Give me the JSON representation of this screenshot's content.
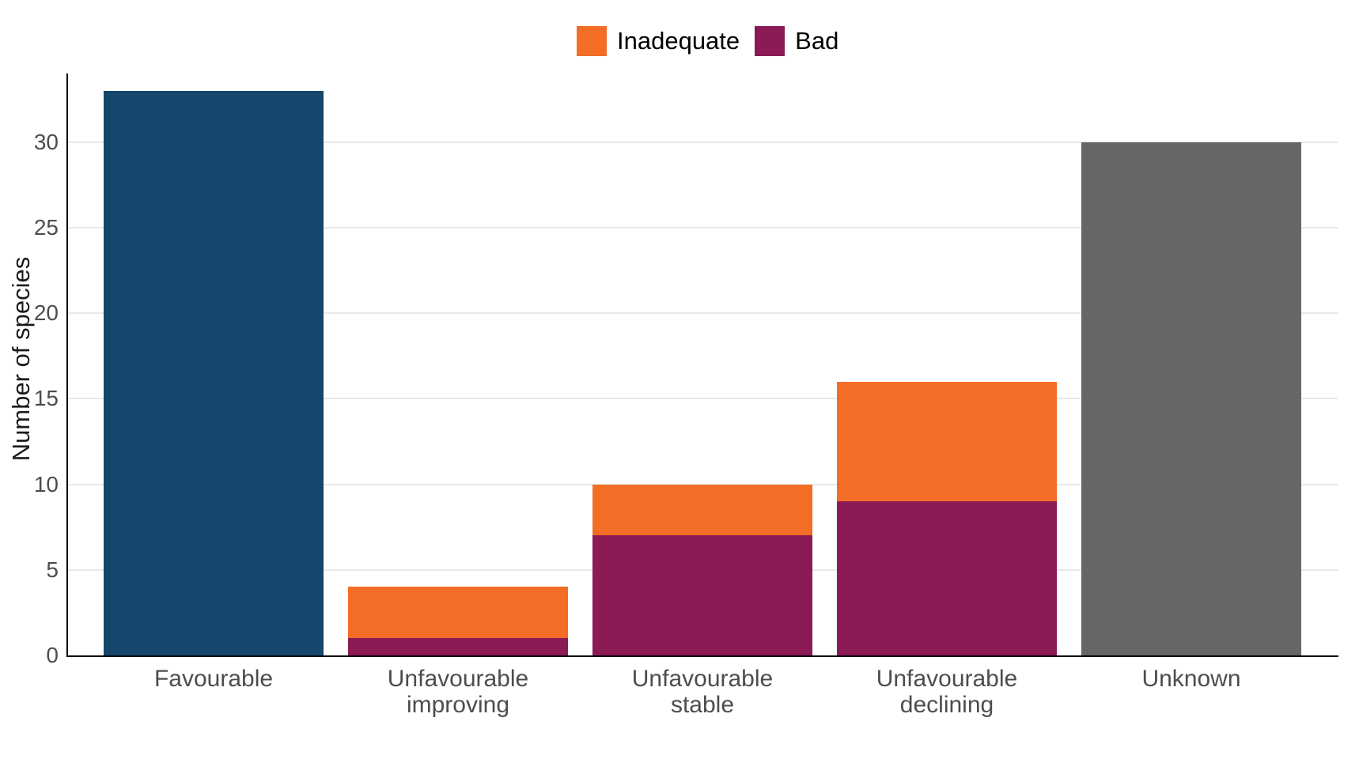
{
  "page": {
    "background": "#ffffff"
  },
  "colors": {
    "axis_line": "#000000",
    "gridline": "#e8e8e8",
    "tick_label": "#4d4d4d",
    "category_label": "#4d4d4d",
    "axis_title": "#1a1a1a",
    "legend_text": "#000000"
  },
  "chart_data": {
    "type": "bar",
    "stacked": true,
    "title": "",
    "xlabel": "",
    "ylabel": "Number of species",
    "ylim": [
      0,
      34
    ],
    "yticks": [
      0,
      5,
      10,
      15,
      20,
      25,
      30
    ],
    "grid": "horizontal major gridlines only, light gray on white",
    "legend_position": "top-center",
    "categories": [
      "Favourable",
      "Unfavourable\nimproving",
      "Unfavourable\nstable",
      "Unfavourable\ndeclining",
      "Unknown"
    ],
    "series": [
      {
        "name": "Favourable",
        "color": "#15466b",
        "in_legend": false,
        "values": [
          33,
          0,
          0,
          0,
          0
        ]
      },
      {
        "name": "Bad",
        "color": "#8b1a55",
        "in_legend": true,
        "values": [
          0,
          1,
          7,
          9,
          0
        ]
      },
      {
        "name": "Inadequate",
        "color": "#f36d26",
        "in_legend": true,
        "values": [
          0,
          3,
          3,
          7,
          0
        ]
      },
      {
        "name": "Unknown",
        "color": "#666666",
        "in_legend": false,
        "values": [
          0,
          0,
          0,
          0,
          30
        ]
      }
    ],
    "totals": [
      33,
      4,
      10,
      16,
      30
    ],
    "legend": [
      {
        "label": "Inadequate",
        "color": "#f36d26"
      },
      {
        "label": "Bad",
        "color": "#8b1a55"
      }
    ]
  }
}
